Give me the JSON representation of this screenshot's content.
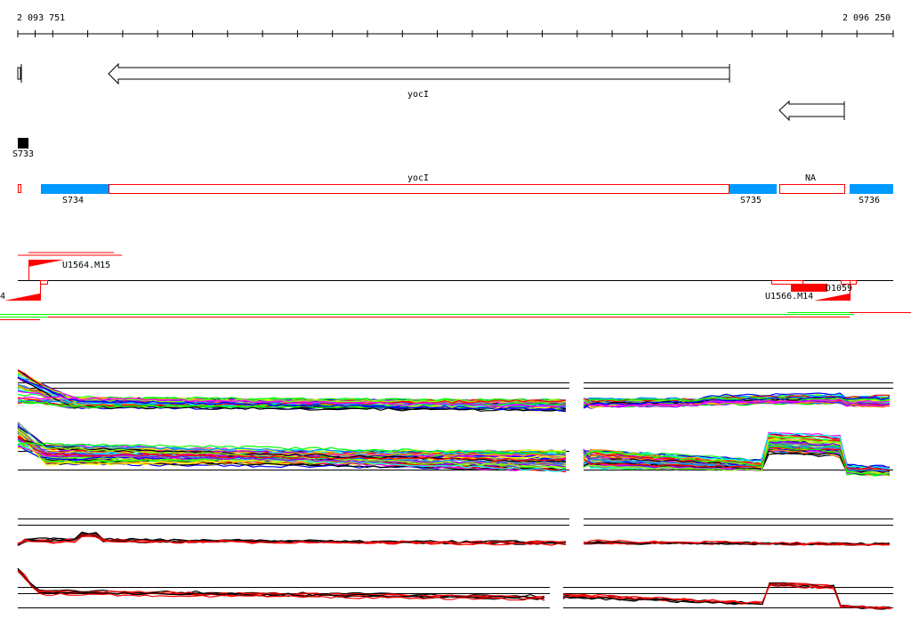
{
  "ruler": {
    "start_label": "2 093 751",
    "end_label": "2 096 250"
  },
  "genes": [
    {
      "label": "yocI",
      "strand": "reverse"
    },
    {
      "label": "",
      "strand": "reverse"
    }
  ],
  "sites": [
    {
      "label": "S733"
    }
  ],
  "segments": {
    "labels": {
      "s734": "S734",
      "s735": "S735",
      "s736": "S736",
      "yoci": "yocI",
      "na": "NA"
    },
    "colors": {
      "segment_fill": "#0099ff",
      "outline": "#ff0000"
    }
  },
  "features": {
    "u1564": "U1564.M15",
    "left_cut": "4",
    "u1566": "U1566.M14",
    "d1059": "D1059"
  },
  "tracks": {
    "palette": [
      "#ff0000",
      "#00ff00",
      "#0000ff",
      "#ff00ff",
      "#00ffff",
      "#ffff00",
      "#ff8800",
      "#888888",
      "#000000",
      "#8800ff",
      "#0088ff",
      "#88ff00"
    ],
    "black": "#000000",
    "red": "#ff0000"
  }
}
